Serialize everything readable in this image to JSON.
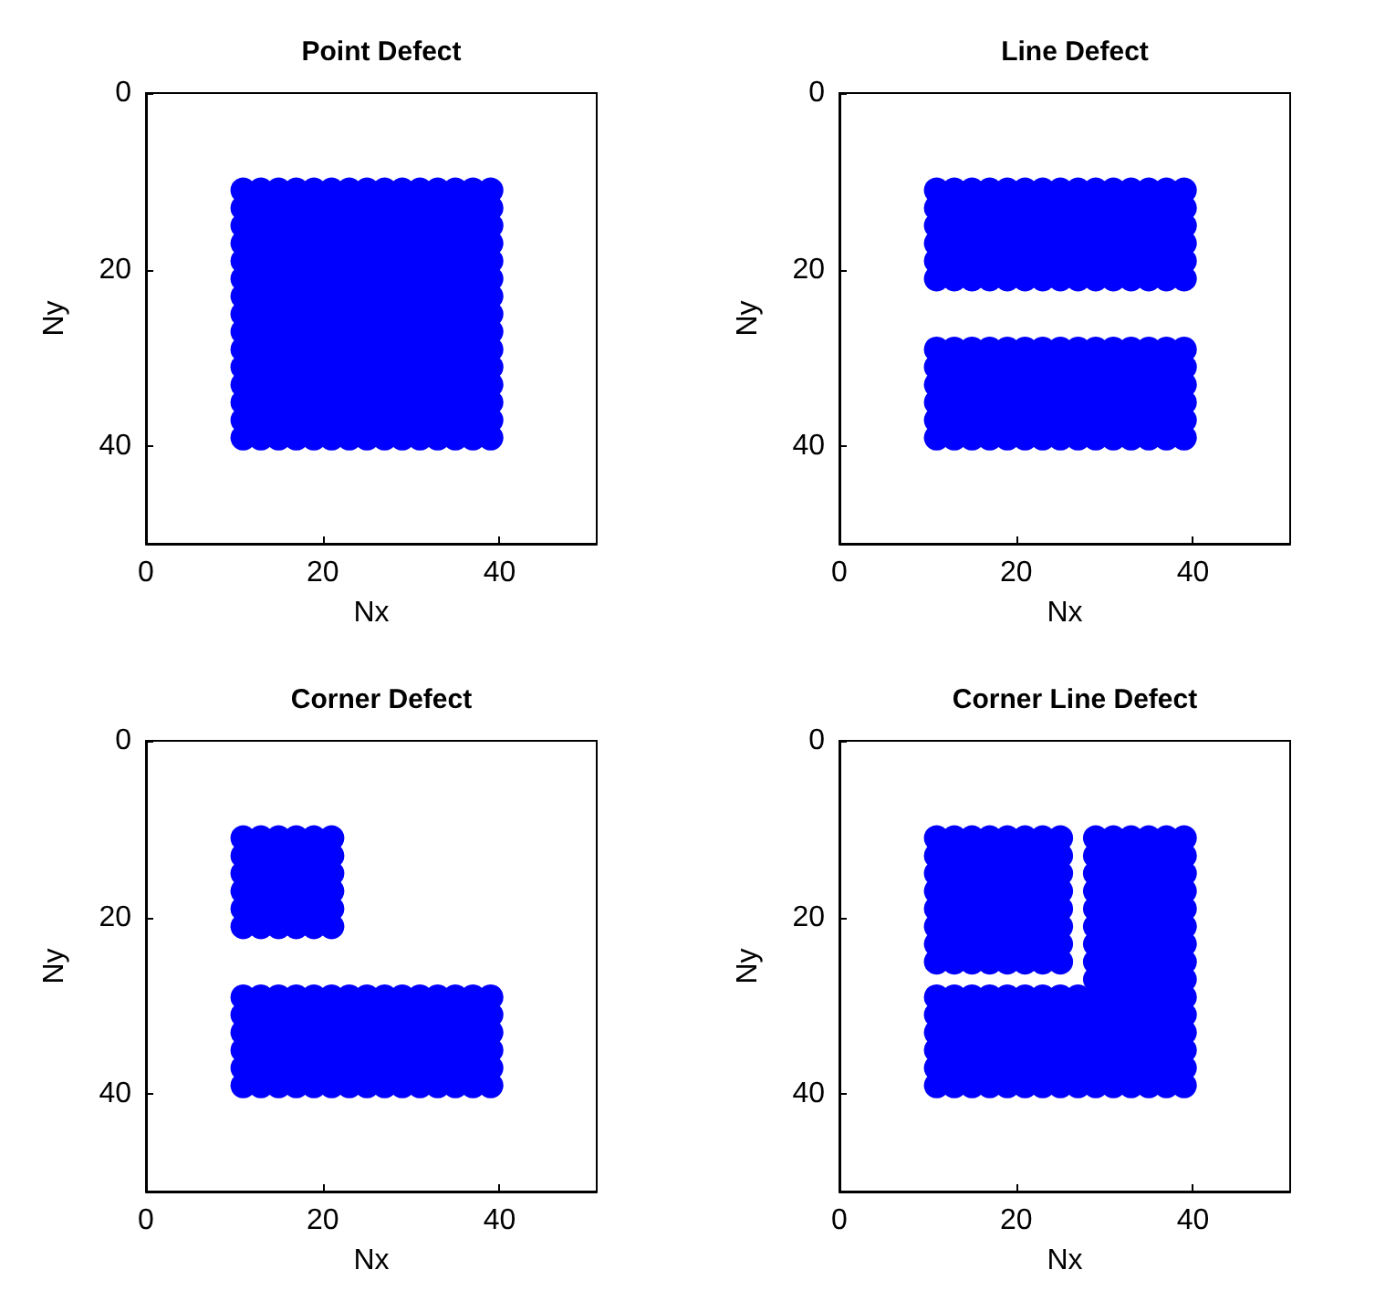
{
  "chart_data": [
    {
      "type": "scatter",
      "title": "Point Defect",
      "xlabel": "Nx",
      "ylabel": "Ny",
      "xlim": [
        0,
        51
      ],
      "ylim": [
        51,
        0
      ],
      "xticks": [
        0,
        20,
        40
      ],
      "yticks": [
        0,
        20,
        40
      ],
      "marker": "circle",
      "series": [
        {
          "color": "#0000ff",
          "x": [
            11,
            13,
            15,
            17,
            19,
            21,
            23,
            25,
            27,
            29,
            31,
            33,
            35,
            37,
            39,
            11,
            13,
            15,
            17,
            19,
            21,
            23,
            25,
            27,
            29,
            31,
            33,
            35,
            37,
            39,
            11,
            13,
            15,
            17,
            19,
            21,
            23,
            25,
            27,
            29,
            31,
            33,
            35,
            37,
            39,
            11,
            13,
            15,
            17,
            19,
            21,
            23,
            25,
            27,
            29,
            31,
            33,
            35,
            37,
            39,
            11,
            13,
            15,
            17,
            19,
            21,
            23,
            25,
            27,
            29,
            31,
            33,
            35,
            37,
            39,
            11,
            13,
            15,
            17,
            19,
            21,
            23,
            25,
            27,
            29,
            31,
            33,
            35,
            37,
            39,
            11,
            13,
            15,
            17,
            19,
            21,
            23,
            25,
            27,
            29,
            31,
            33,
            35,
            37,
            39,
            11,
            13,
            15,
            17,
            19,
            21,
            23,
            25,
            27,
            29,
            31,
            33,
            35,
            37,
            39,
            11,
            13,
            15,
            17,
            19,
            21,
            23,
            25,
            27,
            29,
            31,
            33,
            35,
            37,
            39,
            11,
            13,
            15,
            17,
            19,
            21,
            23,
            25,
            27,
            29,
            31,
            33,
            35,
            37,
            39,
            11,
            13,
            15,
            17,
            19,
            21,
            23,
            25,
            27,
            29,
            31,
            33,
            35,
            37,
            39,
            11,
            13,
            15,
            17,
            19,
            21,
            23,
            25,
            27,
            29,
            31,
            33,
            35,
            37,
            39,
            11,
            13,
            15,
            17,
            19,
            21,
            23,
            25,
            27,
            29,
            31,
            33,
            35,
            37,
            39,
            11,
            13,
            15,
            17,
            19,
            21,
            23,
            25,
            27,
            29,
            31,
            33,
            35,
            37,
            39,
            11,
            13,
            15,
            17,
            19,
            21,
            23,
            25,
            27,
            29,
            31,
            33,
            35,
            37,
            39
          ],
          "values": [
            11,
            11,
            11,
            11,
            11,
            11,
            11,
            11,
            11,
            11,
            11,
            11,
            11,
            11,
            11,
            13,
            13,
            13,
            13,
            13,
            13,
            13,
            13,
            13,
            13,
            13,
            13,
            13,
            13,
            13,
            15,
            15,
            15,
            15,
            15,
            15,
            15,
            15,
            15,
            15,
            15,
            15,
            15,
            15,
            15,
            17,
            17,
            17,
            17,
            17,
            17,
            17,
            17,
            17,
            17,
            17,
            17,
            17,
            17,
            17,
            19,
            19,
            19,
            19,
            19,
            19,
            19,
            19,
            19,
            19,
            19,
            19,
            19,
            19,
            19,
            21,
            21,
            21,
            21,
            21,
            21,
            21,
            21,
            21,
            21,
            21,
            21,
            21,
            21,
            21,
            23,
            23,
            23,
            23,
            23,
            23,
            23,
            23,
            23,
            23,
            23,
            23,
            23,
            23,
            23,
            25,
            25,
            25,
            25,
            25,
            25,
            25,
            25,
            25,
            25,
            25,
            25,
            25,
            25,
            25,
            27,
            27,
            27,
            27,
            27,
            27,
            27,
            27,
            27,
            27,
            27,
            27,
            27,
            27,
            27,
            29,
            29,
            29,
            29,
            29,
            29,
            29,
            29,
            29,
            29,
            29,
            29,
            29,
            29,
            29,
            31,
            31,
            31,
            31,
            31,
            31,
            31,
            31,
            31,
            31,
            31,
            31,
            31,
            31,
            31,
            33,
            33,
            33,
            33,
            33,
            33,
            33,
            33,
            33,
            33,
            33,
            33,
            33,
            33,
            33,
            35,
            35,
            35,
            35,
            35,
            35,
            35,
            35,
            35,
            35,
            35,
            35,
            35,
            35,
            35,
            37,
            37,
            37,
            37,
            37,
            37,
            37,
            37,
            37,
            37,
            37,
            37,
            37,
            37,
            37,
            39,
            39,
            39,
            39,
            39,
            39,
            39,
            39,
            39,
            39,
            39,
            39,
            39,
            39,
            39
          ]
        }
      ]
    },
    {
      "type": "scatter",
      "title": "Line Defect",
      "xlabel": "Nx",
      "ylabel": "Ny",
      "xlim": [
        0,
        51
      ],
      "ylim": [
        51,
        0
      ],
      "xticks": [
        0,
        20,
        40
      ],
      "yticks": [
        0,
        20,
        40
      ],
      "marker": "circle",
      "series": [
        {
          "color": "#0000ff",
          "x": [
            11,
            13,
            15,
            17,
            19,
            21,
            23,
            25,
            27,
            29,
            31,
            33,
            35,
            37,
            39,
            11,
            13,
            15,
            17,
            19,
            21,
            23,
            25,
            27,
            29,
            31,
            33,
            35,
            37,
            39,
            11,
            13,
            15,
            17,
            19,
            21,
            23,
            25,
            27,
            29,
            31,
            33,
            35,
            37,
            39,
            11,
            13,
            15,
            17,
            19,
            21,
            23,
            25,
            27,
            29,
            31,
            33,
            35,
            37,
            39,
            11,
            13,
            15,
            17,
            19,
            21,
            23,
            25,
            27,
            29,
            31,
            33,
            35,
            37,
            39,
            11,
            13,
            15,
            17,
            19,
            21,
            23,
            25,
            27,
            29,
            31,
            33,
            35,
            37,
            39
          ],
          "values": [
            11,
            11,
            11,
            11,
            11,
            11,
            11,
            11,
            11,
            11,
            11,
            11,
            11,
            11,
            11,
            13,
            13,
            13,
            13,
            13,
            13,
            13,
            13,
            13,
            13,
            13,
            13,
            13,
            13,
            13,
            15,
            15,
            15,
            15,
            15,
            15,
            15,
            15,
            15,
            15,
            15,
            15,
            15,
            15,
            15,
            17,
            17,
            17,
            17,
            17,
            17,
            17,
            17,
            17,
            17,
            17,
            17,
            17,
            17,
            17,
            19,
            19,
            19,
            19,
            19,
            19,
            19,
            19,
            19,
            19,
            19,
            19,
            19,
            19,
            19,
            21,
            21,
            21,
            21,
            21,
            21,
            21,
            21,
            21,
            21,
            21,
            21,
            21,
            21,
            21
          ]
        },
        {
          "color": "#0000ff",
          "x": [
            11,
            13,
            15,
            17,
            19,
            21,
            23,
            25,
            27,
            29,
            31,
            33,
            35,
            37,
            39,
            11,
            13,
            15,
            17,
            19,
            21,
            23,
            25,
            27,
            29,
            31,
            33,
            35,
            37,
            39,
            11,
            13,
            15,
            17,
            19,
            21,
            23,
            25,
            27,
            29,
            31,
            33,
            35,
            37,
            39,
            11,
            13,
            15,
            17,
            19,
            21,
            23,
            25,
            27,
            29,
            31,
            33,
            35,
            37,
            39,
            11,
            13,
            15,
            17,
            19,
            21,
            23,
            25,
            27,
            29,
            31,
            33,
            35,
            37,
            39,
            11,
            13,
            15,
            17,
            19,
            21,
            23,
            25,
            27,
            29,
            31,
            33,
            35,
            37,
            39
          ],
          "values": [
            29,
            29,
            29,
            29,
            29,
            29,
            29,
            29,
            29,
            29,
            29,
            29,
            29,
            29,
            29,
            31,
            31,
            31,
            31,
            31,
            31,
            31,
            31,
            31,
            31,
            31,
            31,
            31,
            31,
            31,
            33,
            33,
            33,
            33,
            33,
            33,
            33,
            33,
            33,
            33,
            33,
            33,
            33,
            33,
            33,
            35,
            35,
            35,
            35,
            35,
            35,
            35,
            35,
            35,
            35,
            35,
            35,
            35,
            35,
            35,
            37,
            37,
            37,
            37,
            37,
            37,
            37,
            37,
            37,
            37,
            37,
            37,
            37,
            37,
            37,
            39,
            39,
            39,
            39,
            39,
            39,
            39,
            39,
            39,
            39,
            39,
            39,
            39,
            39,
            39
          ]
        }
      ]
    },
    {
      "type": "scatter",
      "title": "Corner Defect",
      "xlabel": "Nx",
      "ylabel": "Ny",
      "xlim": [
        0,
        51
      ],
      "ylim": [
        51,
        0
      ],
      "xticks": [
        0,
        20,
        40
      ],
      "yticks": [
        0,
        20,
        40
      ],
      "marker": "circle",
      "series": [
        {
          "color": "#0000ff",
          "x": [
            11,
            13,
            15,
            17,
            19,
            21,
            11,
            13,
            15,
            17,
            19,
            21,
            11,
            13,
            15,
            17,
            19,
            21,
            11,
            13,
            15,
            17,
            19,
            21,
            11,
            13,
            15,
            17,
            19,
            21,
            11,
            13,
            15,
            17,
            19,
            21
          ],
          "values": [
            11,
            11,
            11,
            11,
            11,
            11,
            13,
            13,
            13,
            13,
            13,
            13,
            15,
            15,
            15,
            15,
            15,
            15,
            17,
            17,
            17,
            17,
            17,
            17,
            19,
            19,
            19,
            19,
            19,
            19,
            21,
            21,
            21,
            21,
            21,
            21
          ]
        },
        {
          "color": "#0000ff",
          "x": [
            11,
            13,
            15,
            17,
            19,
            21,
            23,
            25,
            27,
            29,
            31,
            33,
            35,
            37,
            39,
            11,
            13,
            15,
            17,
            19,
            21,
            23,
            25,
            27,
            29,
            31,
            33,
            35,
            37,
            39,
            11,
            13,
            15,
            17,
            19,
            21,
            23,
            25,
            27,
            29,
            31,
            33,
            35,
            37,
            39,
            11,
            13,
            15,
            17,
            19,
            21,
            23,
            25,
            27,
            29,
            31,
            33,
            35,
            37,
            39,
            11,
            13,
            15,
            17,
            19,
            21,
            23,
            25,
            27,
            29,
            31,
            33,
            35,
            37,
            39,
            11,
            13,
            15,
            17,
            19,
            21,
            23,
            25,
            27,
            29,
            31,
            33,
            35,
            37,
            39
          ],
          "values": [
            29,
            29,
            29,
            29,
            29,
            29,
            29,
            29,
            29,
            29,
            29,
            29,
            29,
            29,
            29,
            31,
            31,
            31,
            31,
            31,
            31,
            31,
            31,
            31,
            31,
            31,
            31,
            31,
            31,
            31,
            33,
            33,
            33,
            33,
            33,
            33,
            33,
            33,
            33,
            33,
            33,
            33,
            33,
            33,
            33,
            35,
            35,
            35,
            35,
            35,
            35,
            35,
            35,
            35,
            35,
            35,
            35,
            35,
            35,
            35,
            37,
            37,
            37,
            37,
            37,
            37,
            37,
            37,
            37,
            37,
            37,
            37,
            37,
            37,
            37,
            39,
            39,
            39,
            39,
            39,
            39,
            39,
            39,
            39,
            39,
            39,
            39,
            39,
            39,
            39
          ]
        }
      ]
    },
    {
      "type": "scatter",
      "title": "Corner Line Defect",
      "xlabel": "Nx",
      "ylabel": "Ny",
      "xlim": [
        0,
        51
      ],
      "ylim": [
        51,
        0
      ],
      "xticks": [
        0,
        20,
        40
      ],
      "yticks": [
        0,
        20,
        40
      ],
      "marker": "circle",
      "series": [
        {
          "color": "#0000ff",
          "x": [
            11,
            13,
            15,
            17,
            19,
            21,
            23,
            25,
            11,
            13,
            15,
            17,
            19,
            21,
            23,
            25,
            11,
            13,
            15,
            17,
            19,
            21,
            23,
            25,
            11,
            13,
            15,
            17,
            19,
            21,
            23,
            25,
            11,
            13,
            15,
            17,
            19,
            21,
            23,
            25,
            11,
            13,
            15,
            17,
            19,
            21,
            23,
            25,
            11,
            13,
            15,
            17,
            19,
            21,
            23,
            25,
            11,
            13,
            15,
            17,
            19,
            21,
            23,
            25
          ],
          "values": [
            11,
            11,
            11,
            11,
            11,
            11,
            11,
            11,
            13,
            13,
            13,
            13,
            13,
            13,
            13,
            13,
            15,
            15,
            15,
            15,
            15,
            15,
            15,
            15,
            17,
            17,
            17,
            17,
            17,
            17,
            17,
            17,
            19,
            19,
            19,
            19,
            19,
            19,
            19,
            19,
            21,
            21,
            21,
            21,
            21,
            21,
            21,
            21,
            23,
            23,
            23,
            23,
            23,
            23,
            23,
            23,
            25,
            25,
            25,
            25,
            25,
            25,
            25,
            25
          ]
        },
        {
          "color": "#0000ff",
          "x": [
            29,
            31,
            33,
            35,
            37,
            39,
            29,
            31,
            33,
            35,
            37,
            39,
            29,
            31,
            33,
            35,
            37,
            39,
            29,
            31,
            33,
            35,
            37,
            39,
            29,
            31,
            33,
            35,
            37,
            39,
            29,
            31,
            33,
            35,
            37,
            39,
            29,
            31,
            33,
            35,
            37,
            39,
            29,
            31,
            33,
            35,
            37,
            39,
            29,
            31,
            33,
            35,
            37,
            39
          ],
          "values": [
            11,
            11,
            11,
            11,
            11,
            11,
            13,
            13,
            13,
            13,
            13,
            13,
            15,
            15,
            15,
            15,
            15,
            15,
            17,
            17,
            17,
            17,
            17,
            17,
            19,
            19,
            19,
            19,
            19,
            19,
            21,
            21,
            21,
            21,
            21,
            21,
            23,
            23,
            23,
            23,
            23,
            23,
            25,
            25,
            25,
            25,
            25,
            25,
            27,
            27,
            27,
            27,
            27,
            27
          ]
        },
        {
          "color": "#0000ff",
          "x": [
            11,
            13,
            15,
            17,
            19,
            21,
            23,
            25,
            27,
            29,
            31,
            33,
            35,
            37,
            39,
            11,
            13,
            15,
            17,
            19,
            21,
            23,
            25,
            27,
            29,
            31,
            33,
            35,
            37,
            39,
            11,
            13,
            15,
            17,
            19,
            21,
            23,
            25,
            27,
            29,
            31,
            33,
            35,
            37,
            39,
            11,
            13,
            15,
            17,
            19,
            21,
            23,
            25,
            27,
            29,
            31,
            33,
            35,
            37,
            39,
            11,
            13,
            15,
            17,
            19,
            21,
            23,
            25,
            27,
            29,
            31,
            33,
            35,
            37,
            39,
            11,
            13,
            15,
            17,
            19,
            21,
            23,
            25,
            27,
            29,
            31,
            33,
            35,
            37,
            39
          ],
          "values": [
            29,
            29,
            29,
            29,
            29,
            29,
            29,
            29,
            29,
            29,
            29,
            29,
            29,
            29,
            29,
            31,
            31,
            31,
            31,
            31,
            31,
            31,
            31,
            31,
            31,
            31,
            31,
            31,
            31,
            31,
            33,
            33,
            33,
            33,
            33,
            33,
            33,
            33,
            33,
            33,
            33,
            33,
            33,
            33,
            33,
            35,
            35,
            35,
            35,
            35,
            35,
            35,
            35,
            35,
            35,
            35,
            35,
            35,
            35,
            35,
            37,
            37,
            37,
            37,
            37,
            37,
            37,
            37,
            37,
            37,
            37,
            37,
            37,
            37,
            37,
            39,
            39,
            39,
            39,
            39,
            39,
            39,
            39,
            39,
            39,
            39,
            39,
            39,
            39,
            39
          ]
        }
      ]
    }
  ]
}
